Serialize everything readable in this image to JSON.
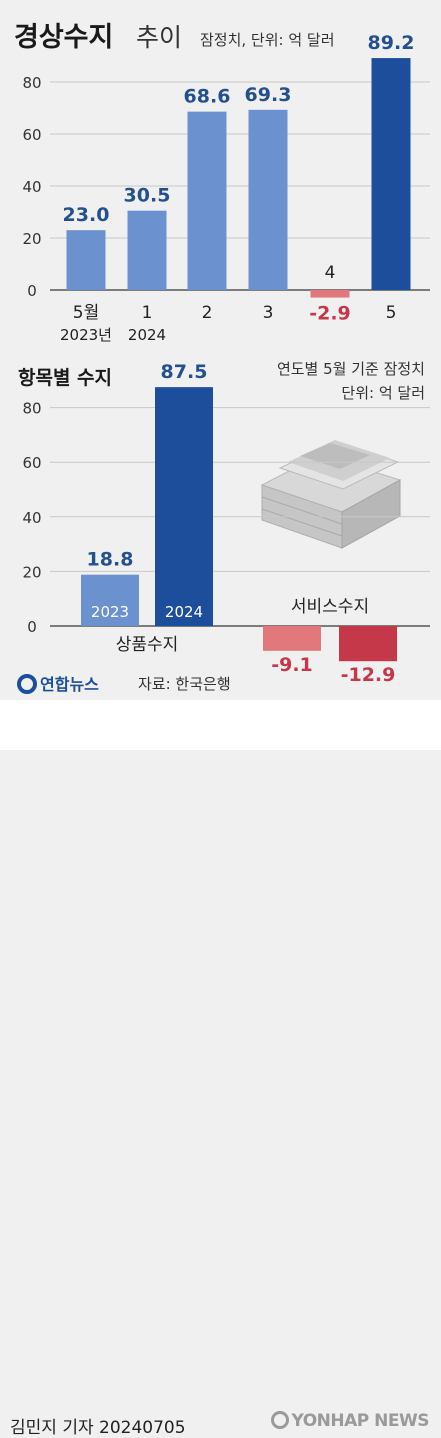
{
  "header": {
    "title_bold": "경상수지",
    "title_light": "추이",
    "note": "잠정치, 단위: 억 달러"
  },
  "section2": {
    "title": "항목별 수지",
    "note_line1": "연도별 5월 기준 잠정치",
    "note_line2": "단위: 억 달러"
  },
  "logo": {
    "name": "연합뉴스",
    "source": "자료: 한국은행"
  },
  "footer": {
    "reporter": "김민지 기자",
    "date": "20240705",
    "brand": "YONHAP NEWS"
  },
  "colors": {
    "light_blue": "#6b92cf",
    "dark_blue": "#1c4e9c",
    "light_red": "#e0787c",
    "dark_red": "#c4384a",
    "label_blue": "#24508f",
    "label_red": "#c4384a"
  },
  "chart_data": [
    {
      "type": "bar",
      "categories": [
        "5월",
        "1",
        "2",
        "3",
        "4",
        "5"
      ],
      "category_sublabels": [
        "2023년",
        "2024",
        "",
        "",
        "",
        ""
      ],
      "values": [
        23.0,
        30.5,
        68.6,
        69.3,
        -2.9,
        89.2
      ],
      "value_labels": [
        "23.0",
        "30.5",
        "68.6",
        "69.3",
        "-2.9",
        "89.2"
      ],
      "yticks": [
        "0",
        "20",
        "40",
        "60",
        "80"
      ],
      "ylim": [
        -3,
        90
      ],
      "grid": true
    },
    {
      "type": "bar",
      "groups": [
        "상품수지",
        "서비스수지"
      ],
      "series": [
        {
          "name": "2023",
          "values": [
            18.8,
            -9.1
          ]
        },
        {
          "name": "2024",
          "values": [
            87.5,
            -12.9
          ]
        }
      ],
      "value_labels": [
        [
          "18.8",
          "87.5"
        ],
        [
          "-9.1",
          "-12.9"
        ]
      ],
      "yticks": [
        "0",
        "20",
        "40",
        "60",
        "80"
      ],
      "ylim": [
        -14,
        90
      ],
      "grid": true
    }
  ]
}
